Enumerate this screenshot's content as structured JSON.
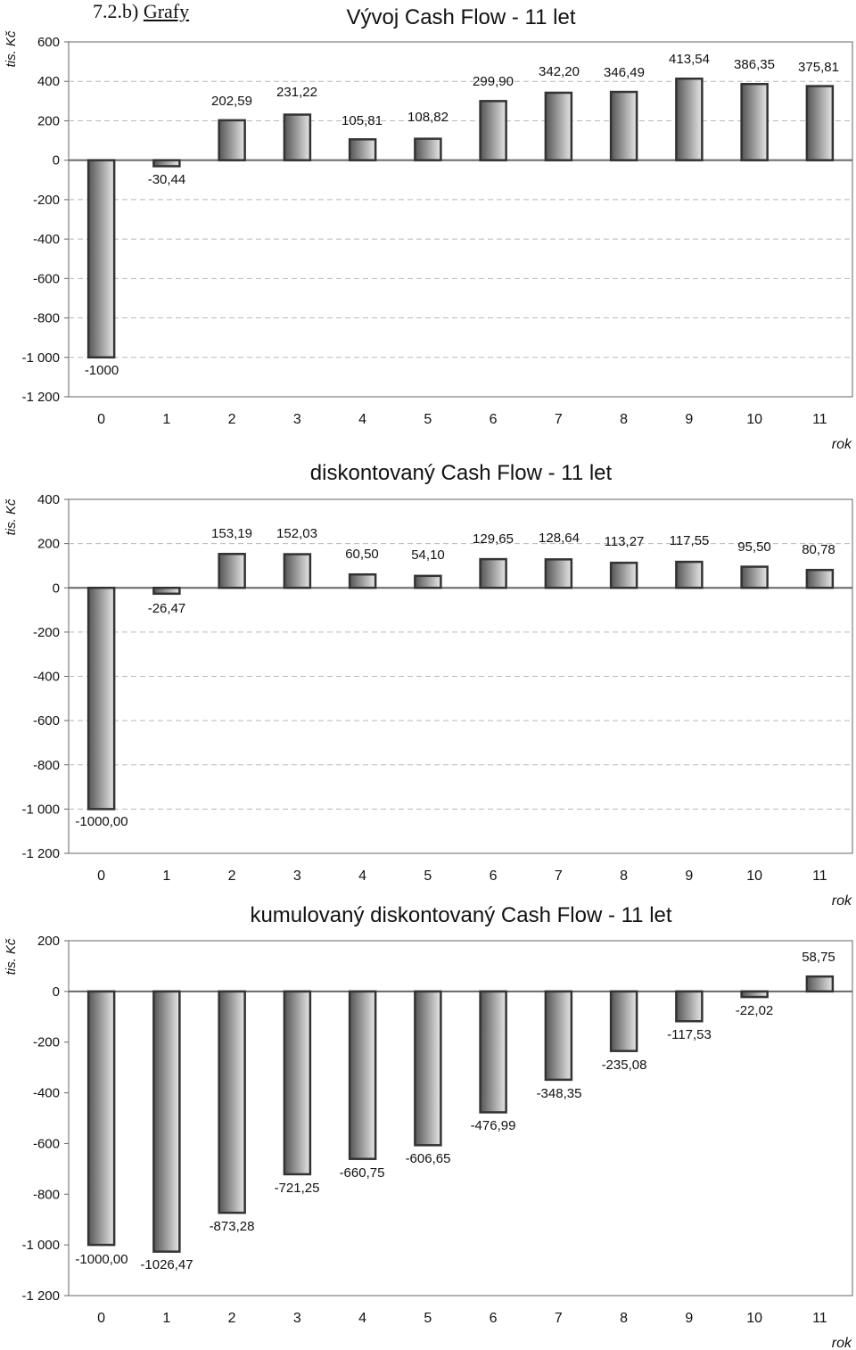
{
  "page": {
    "heading_number": "7.2.b)",
    "heading_text": "Grafy"
  },
  "colors": {
    "bar_dark": "#555555",
    "bar_light": "#e6e6e6",
    "bar_stroke": "#333333",
    "grid": "#b8b8b8",
    "axis": "#666666",
    "text": "#111111"
  },
  "chart_data": [
    {
      "type": "bar",
      "title": "Vývoj Cash Flow - 11 let",
      "ylabel": "tis. Kč",
      "xlabel": "rok",
      "categories": [
        "0",
        "1",
        "2",
        "3",
        "4",
        "5",
        "6",
        "7",
        "8",
        "9",
        "10",
        "11"
      ],
      "values": [
        -1000,
        -30.44,
        202.59,
        231.22,
        105.81,
        108.82,
        299.9,
        342.2,
        346.49,
        413.54,
        386.35,
        375.81
      ],
      "labels": [
        "-1000",
        "-30,44",
        "202,59",
        "231,22",
        "105,81",
        "108,82",
        "299,90",
        "342,20",
        "346,49",
        "413,54",
        "386,35",
        "375,81"
      ],
      "yticks": [
        "-1 200",
        "-1 000",
        "-800",
        "-600",
        "-400",
        "-200",
        "0",
        "200",
        "400",
        "600"
      ],
      "ylim": [
        -1200,
        600
      ],
      "grid": true
    },
    {
      "type": "bar",
      "title": "diskontovaný Cash Flow - 11 let",
      "ylabel": "tis. Kč",
      "xlabel": "rok",
      "categories": [
        "0",
        "1",
        "2",
        "3",
        "4",
        "5",
        "6",
        "7",
        "8",
        "9",
        "10",
        "11"
      ],
      "values": [
        -1000.0,
        -26.47,
        153.19,
        152.03,
        60.5,
        54.1,
        129.65,
        128.64,
        113.27,
        117.55,
        95.5,
        80.78
      ],
      "labels": [
        "-1000,00",
        "-26,47",
        "153,19",
        "152,03",
        "60,50",
        "54,10",
        "129,65",
        "128,64",
        "113,27",
        "117,55",
        "95,50",
        "80,78"
      ],
      "yticks": [
        "-1 200",
        "-1 000",
        "-800",
        "-600",
        "-400",
        "-200",
        "0",
        "200",
        "400"
      ],
      "ylim": [
        -1200,
        400
      ],
      "grid": true
    },
    {
      "type": "bar",
      "title": "kumulovaný diskontovaný Cash Flow - 11 let",
      "ylabel": "tis. Kč",
      "xlabel": "rok",
      "categories": [
        "0",
        "1",
        "2",
        "3",
        "4",
        "5",
        "6",
        "7",
        "8",
        "9",
        "10",
        "11"
      ],
      "values": [
        -1000.0,
        -1026.47,
        -873.28,
        -721.25,
        -660.75,
        -606.65,
        -476.99,
        -348.35,
        -235.08,
        -117.53,
        -22.02,
        58.75
      ],
      "labels": [
        "-1000,00",
        "-1026,47",
        "-873,28",
        "-721,25",
        "-660,75",
        "-606,65",
        "-476,99",
        "-348,35",
        "-235,08",
        "-117,53",
        "-22,02",
        "58,75"
      ],
      "yticks": [
        "-1 200",
        "-1 000",
        "-800",
        "-600",
        "-400",
        "-200",
        "0",
        "200"
      ],
      "ylim": [
        -1200,
        200
      ],
      "grid": false
    }
  ]
}
